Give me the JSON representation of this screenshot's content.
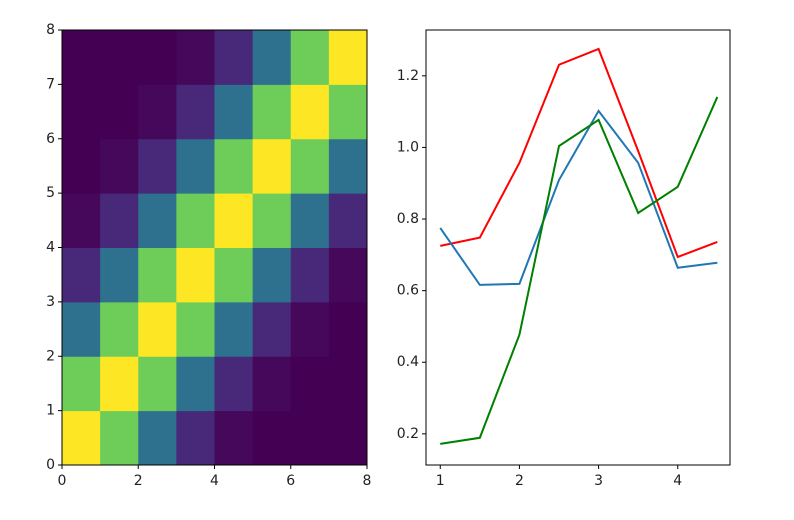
{
  "chart_data": [
    {
      "type": "heatmap",
      "colormap": "viridis",
      "zlim": [
        0,
        1
      ],
      "xlim": [
        0,
        8
      ],
      "ylim": [
        0,
        8
      ],
      "xticks": [
        0,
        2,
        4,
        6,
        8
      ],
      "yticks": [
        0,
        1,
        2,
        3,
        4,
        5,
        6,
        7,
        8
      ],
      "z": [
        [
          1,
          0.78,
          0.37,
          0.11,
          0.02,
          0,
          0,
          0
        ],
        [
          0.78,
          1,
          0.78,
          0.37,
          0.11,
          0.02,
          0,
          0
        ],
        [
          0.37,
          0.78,
          1,
          0.78,
          0.37,
          0.11,
          0.02,
          0
        ],
        [
          0.11,
          0.37,
          0.78,
          1,
          0.78,
          0.37,
          0.11,
          0.02
        ],
        [
          0.02,
          0.11,
          0.37,
          0.78,
          1,
          0.78,
          0.37,
          0.11
        ],
        [
          0,
          0.02,
          0.11,
          0.37,
          0.78,
          1,
          0.78,
          0.37
        ],
        [
          0,
          0,
          0.02,
          0.11,
          0.37,
          0.78,
          1,
          0.78
        ],
        [
          0,
          0,
          0,
          0.02,
          0.11,
          0.37,
          0.78,
          1
        ]
      ]
    },
    {
      "type": "line",
      "x": [
        1,
        1.5,
        2,
        2.5,
        3,
        3.5,
        4,
        4.5
      ],
      "xlim": [
        0.82,
        4.66
      ],
      "ylim": [
        0.113,
        1.328
      ],
      "xticks": [
        1,
        2,
        3,
        4
      ],
      "yticks": [
        0.2,
        0.4,
        0.6,
        0.8,
        {
          "value": 1,
          "label": "1.0"
        },
        1.2
      ],
      "series": [
        {
          "color": "#ff0000",
          "values": [
            0.725,
            0.748,
            0.957,
            1.231,
            1.275,
            0.99,
            0.694,
            0.736
          ]
        },
        {
          "color": "#1f77b4",
          "values": [
            0.775,
            0.616,
            0.619,
            0.909,
            1.102,
            0.957,
            0.664,
            0.678
          ]
        },
        {
          "color": "#008000",
          "values": [
            0.172,
            0.189,
            0.477,
            1.004,
            1.077,
            0.817,
            0.89,
            1.141
          ]
        }
      ]
    }
  ]
}
